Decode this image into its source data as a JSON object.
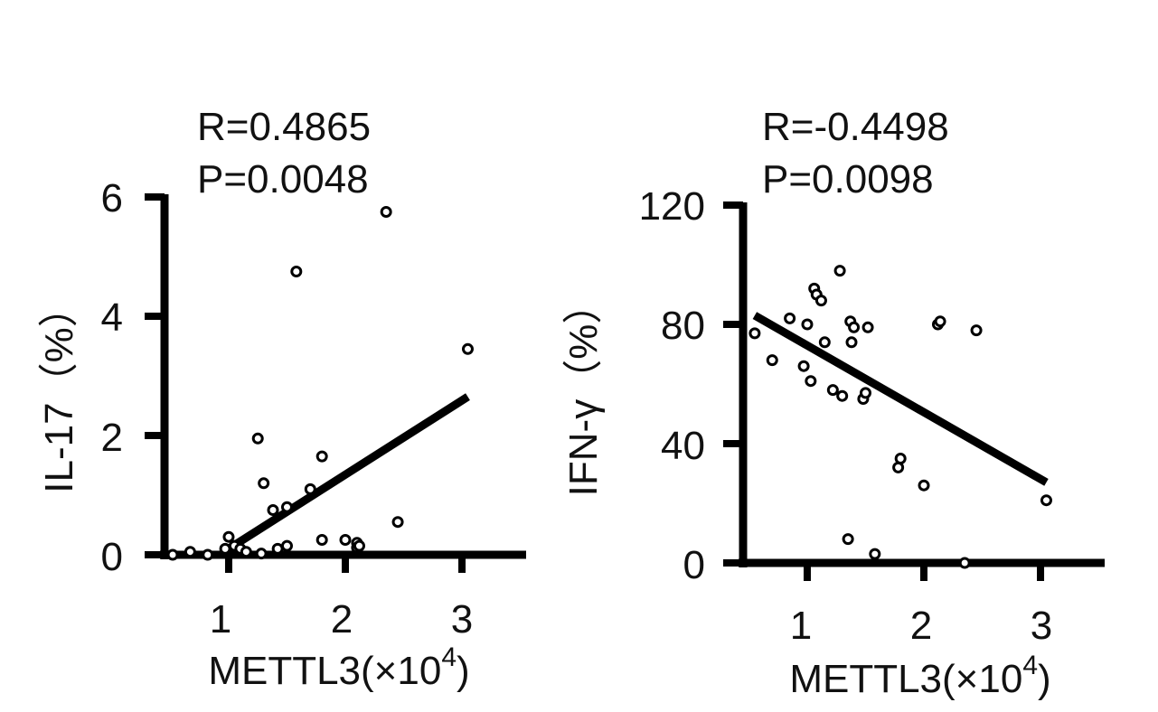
{
  "chart_data": [
    {
      "type": "scatter",
      "annotations": [
        "R=0.4865",
        "P=0.0048"
      ],
      "xlabel": "METTL3(×10",
      "xlabel_sup": "4",
      "xlabel_close": ")",
      "ylabel": "IL-17（%）",
      "xlim": [
        0.45,
        3.55
      ],
      "ylim": [
        0,
        6
      ],
      "xticks": [
        1,
        2,
        3
      ],
      "yticks": [
        0,
        2,
        4,
        6
      ],
      "x": [
        0.52,
        0.67,
        0.82,
        0.97,
        1.0,
        1.05,
        1.1,
        1.15,
        1.25,
        1.28,
        1.3,
        1.38,
        1.42,
        1.5,
        1.5,
        1.58,
        1.7,
        1.8,
        1.8,
        2.0,
        2.1,
        2.1,
        2.12,
        2.35,
        2.45,
        3.05
      ],
      "y": [
        0.0,
        0.05,
        0.0,
        0.1,
        0.3,
        0.15,
        0.1,
        0.05,
        1.95,
        0.02,
        1.2,
        0.75,
        0.1,
        0.15,
        0.8,
        4.75,
        1.1,
        1.65,
        0.25,
        0.25,
        0.2,
        0.12,
        0.15,
        5.75,
        0.55,
        3.45
      ],
      "fit": {
        "x": [
          1.0,
          3.05
        ],
        "y": [
          0.1,
          2.65
        ]
      }
    },
    {
      "type": "scatter",
      "annotations": [
        "R=-0.4498",
        "P=0.0098"
      ],
      "xlabel": "METTL3(×10",
      "xlabel_sup": "4",
      "xlabel_close": ")",
      "ylabel": "IFN-γ（%）",
      "xlim": [
        0.45,
        3.55
      ],
      "ylim": [
        0,
        120
      ],
      "xticks": [
        1,
        2,
        3
      ],
      "yticks": [
        0,
        40,
        80,
        120
      ],
      "x": [
        0.55,
        0.7,
        0.85,
        0.97,
        1.0,
        1.03,
        1.06,
        1.08,
        1.12,
        1.15,
        1.22,
        1.28,
        1.3,
        1.35,
        1.37,
        1.38,
        1.4,
        1.48,
        1.5,
        1.52,
        1.58,
        1.78,
        1.8,
        2.0,
        2.12,
        2.14,
        2.35,
        2.45,
        3.05
      ],
      "y": [
        77,
        68,
        82,
        66,
        80,
        61,
        92,
        90,
        88,
        74,
        58,
        98,
        56,
        8,
        81,
        74,
        79,
        55,
        57,
        79,
        3,
        32,
        35,
        26,
        80,
        81,
        0,
        78,
        21
      ],
      "fit": {
        "x": [
          0.55,
          3.05
        ],
        "y": [
          83,
          27
        ]
      }
    }
  ]
}
